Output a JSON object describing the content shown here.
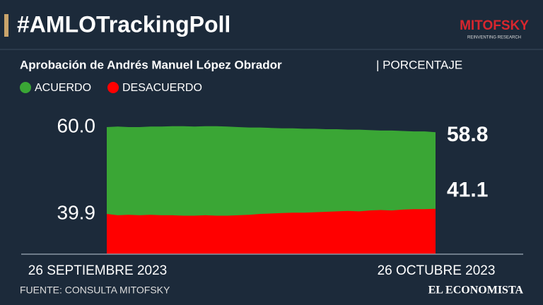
{
  "chart_data": {
    "type": "area",
    "title": "#AMLOTrackingPoll",
    "logo": "MITOFSKY",
    "logo_tagline": "REINVENTING RESEARCH",
    "subtitle": "Aprobación de Andrés Manuel López Obrador",
    "unit": "| PORCENTAJE",
    "x": [
      "26 SEPTIEMBRE 2023",
      null,
      null,
      null,
      null,
      null,
      null,
      null,
      null,
      null,
      null,
      null,
      null,
      null,
      null,
      null,
      null,
      null,
      null,
      null,
      null,
      null,
      null,
      null,
      null,
      null,
      null,
      null,
      null,
      null,
      "26 OCTUBRE 2023"
    ],
    "series": [
      {
        "name": "ACUERDO",
        "color": "#3aa635",
        "values": [
          60.0,
          60.1,
          60.0,
          60.0,
          60.1,
          60.1,
          60.2,
          60.2,
          60.1,
          60.2,
          60.2,
          60.1,
          60.0,
          59.9,
          59.9,
          59.8,
          59.7,
          59.7,
          59.6,
          59.6,
          59.5,
          59.5,
          59.4,
          59.4,
          59.3,
          59.2,
          59.2,
          59.1,
          59.0,
          59.0,
          58.8
        ]
      },
      {
        "name": "DESACUERDO",
        "color": "#ff0000",
        "values": [
          39.9,
          39.6,
          39.7,
          39.6,
          39.7,
          39.6,
          39.6,
          39.5,
          39.5,
          39.6,
          39.5,
          39.5,
          39.6,
          39.7,
          39.9,
          40.0,
          40.1,
          40.2,
          40.2,
          40.3,
          40.4,
          40.5,
          40.6,
          40.5,
          40.7,
          40.8,
          40.7,
          40.9,
          41.0,
          41.0,
          41.1
        ]
      }
    ],
    "ylim": [
      30.6,
      61.3
    ],
    "yticks": [
      {
        "value": 60,
        "label": "60.0"
      },
      39.9
    ],
    "source": "FUENTE: CONSULTA MITOFSKY",
    "publisher": "EL ECONOMISTA"
  }
}
